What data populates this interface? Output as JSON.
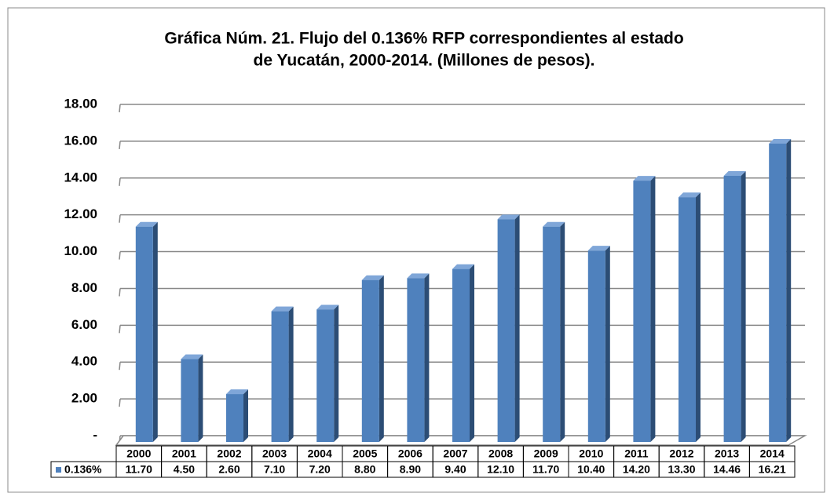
{
  "chart_data": {
    "type": "bar",
    "title": [
      "Gráfica Núm. 21. Flujo del 0.136% RFP correspondientes al estado",
      "de Yucatán, 2000-2014. (Millones de pesos)."
    ],
    "categories": [
      "2000",
      "2001",
      "2002",
      "2003",
      "2004",
      "2005",
      "2006",
      "2007",
      "2008",
      "2009",
      "2010",
      "2011",
      "2012",
      "2013",
      "2014"
    ],
    "series": [
      {
        "name": "0.136%",
        "color": "#4f81bd",
        "values": [
          11.7,
          4.5,
          2.6,
          7.1,
          7.2,
          8.8,
          8.9,
          9.4,
          12.1,
          11.7,
          10.4,
          14.2,
          13.3,
          14.46,
          16.21
        ],
        "value_labels": [
          "11.70",
          "4.50",
          "2.60",
          "7.10",
          "7.20",
          "8.80",
          "8.90",
          "9.40",
          "12.10",
          "11.70",
          "10.40",
          "14.20",
          "13.30",
          "14.46",
          "16.21"
        ]
      }
    ],
    "ylim": [
      0,
      18
    ],
    "yticks": [
      {
        "value": 0,
        "label": "-"
      },
      {
        "value": 2,
        "label": "2.00"
      },
      {
        "value": 4,
        "label": "4.00"
      },
      {
        "value": 6,
        "label": "6.00"
      },
      {
        "value": 8,
        "label": "8.00"
      },
      {
        "value": 10,
        "label": "10.00"
      },
      {
        "value": 12,
        "label": "12.00"
      },
      {
        "value": 14,
        "label": "14.00"
      },
      {
        "value": 16,
        "label": "16.00"
      },
      {
        "value": 18,
        "label": "18.00"
      }
    ],
    "grid": true,
    "data_table": true
  }
}
